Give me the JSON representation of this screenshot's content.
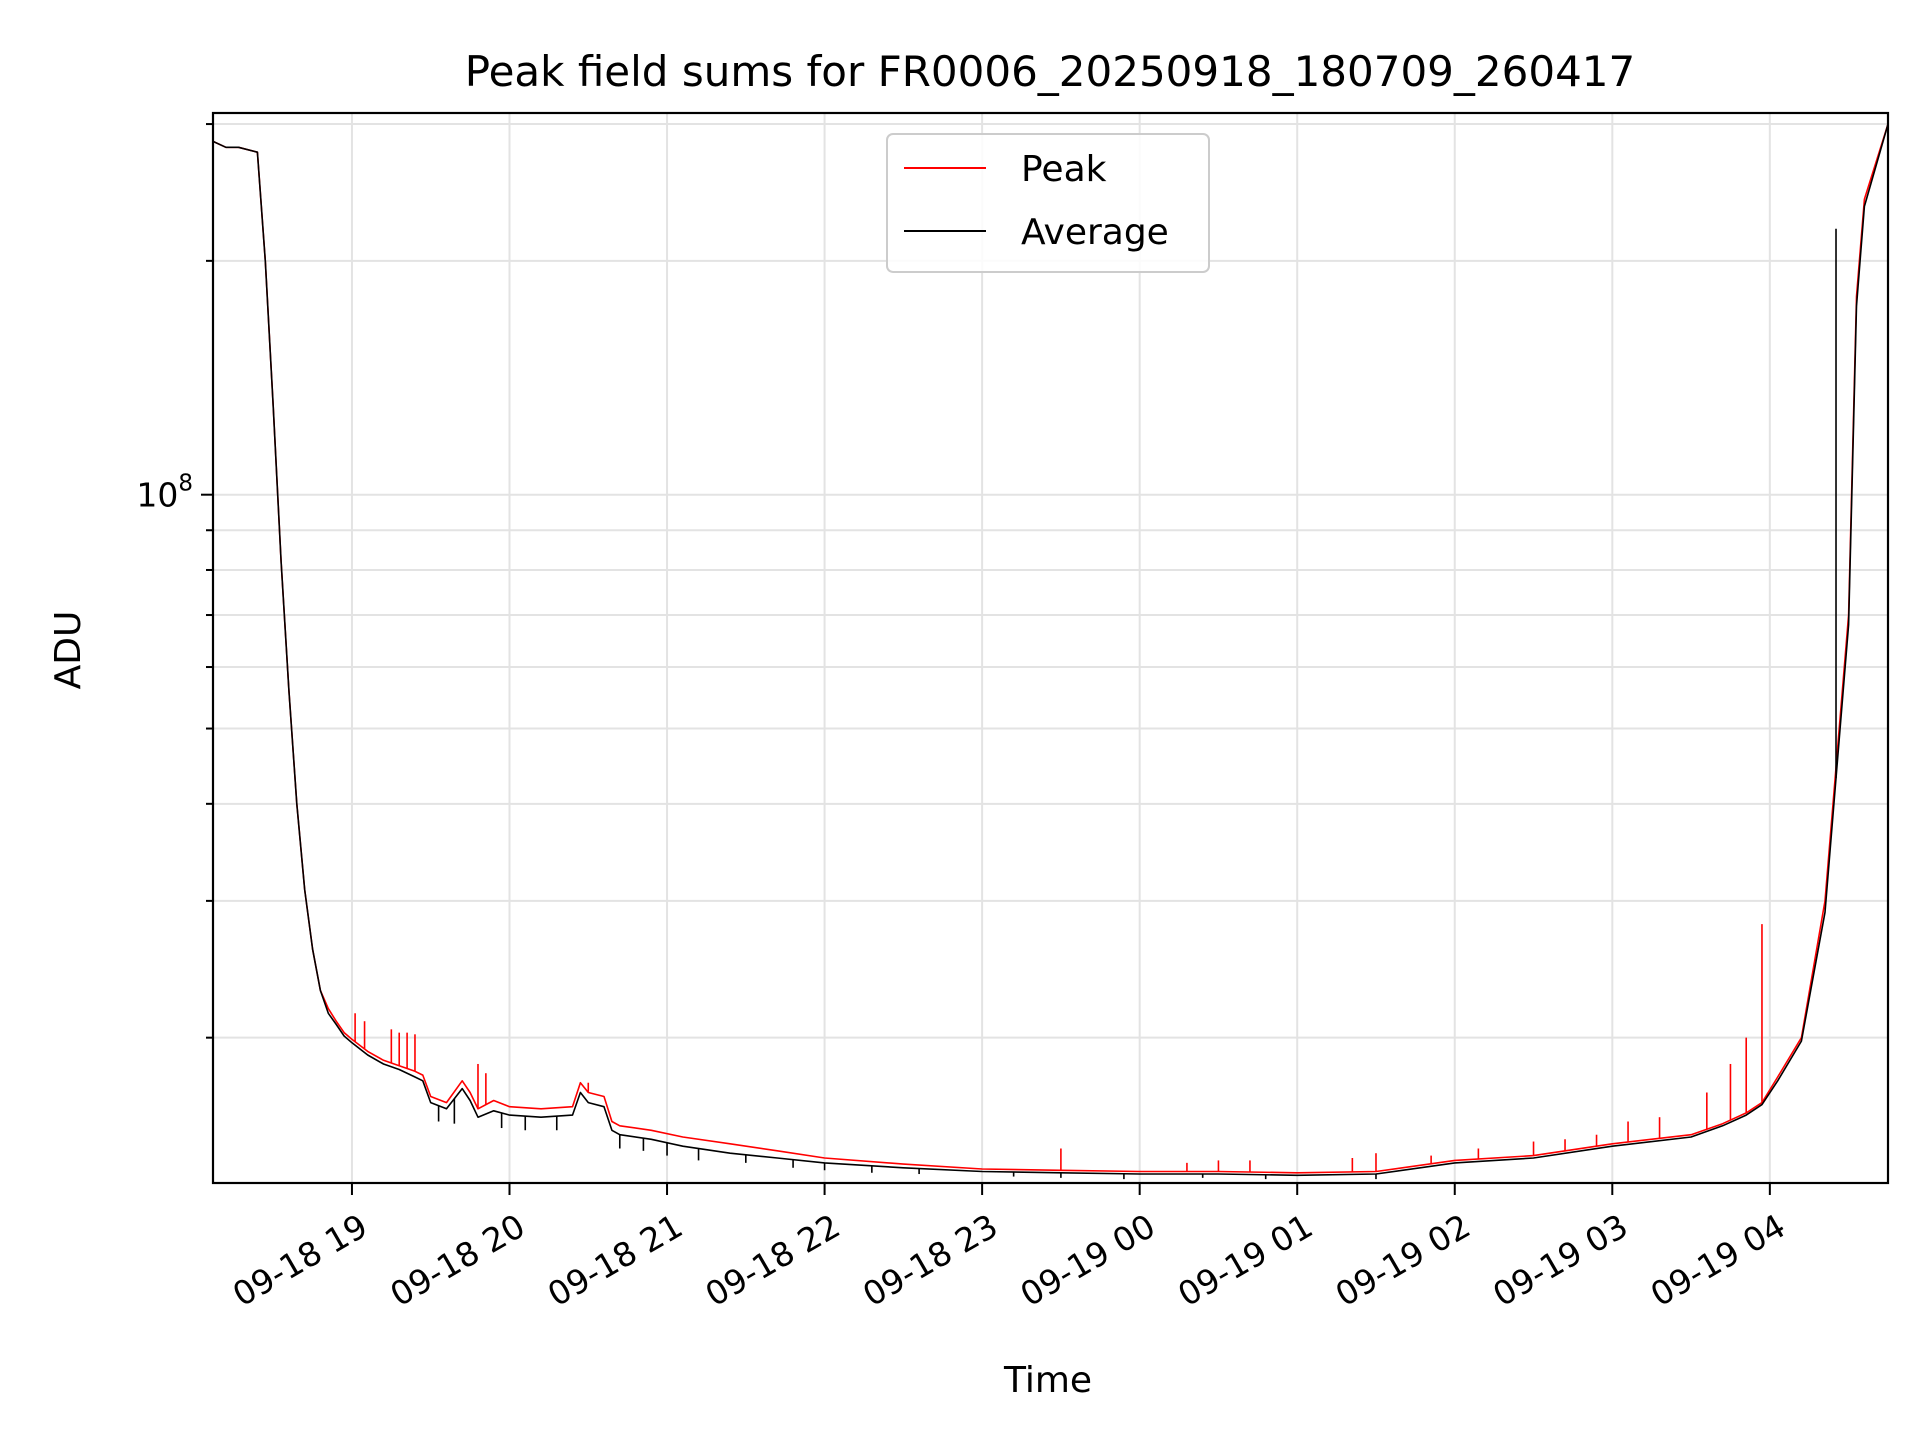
{
  "chart_data": {
    "type": "line",
    "title": "Peak field sums for FR0006_20250918_180709_260417",
    "xlabel": "Time",
    "ylabel": "ADU",
    "x_unit": "hours since 09-18 18:00",
    "xlim": [
      0.118,
      10.75
    ],
    "ylog": true,
    "ylim": [
      13000000,
      310000000
    ],
    "y_major_ticks": [
      {
        "value": 100000000,
        "base": "10",
        "exp": "8"
      }
    ],
    "y_minor_ticks": [
      20000000,
      30000000,
      40000000,
      50000000,
      60000000,
      70000000,
      80000000,
      90000000,
      200000000,
      300000000
    ],
    "x_ticks": [
      {
        "value": 1,
        "label": "09-18 19"
      },
      {
        "value": 2,
        "label": "09-18 20"
      },
      {
        "value": 3,
        "label": "09-18 21"
      },
      {
        "value": 4,
        "label": "09-18 22"
      },
      {
        "value": 5,
        "label": "09-18 23"
      },
      {
        "value": 6,
        "label": "09-19 00"
      },
      {
        "value": 7,
        "label": "09-19 01"
      },
      {
        "value": 8,
        "label": "09-19 02"
      },
      {
        "value": 9,
        "label": "09-19 03"
      },
      {
        "value": 10,
        "label": "09-19 04"
      }
    ],
    "grid": true,
    "legend": {
      "placement": "upper-center"
    },
    "series": [
      {
        "name": "Peak",
        "color": "#ff0000",
        "x": [
          0.118,
          0.2,
          0.28,
          0.4,
          0.45,
          0.5,
          0.55,
          0.6,
          0.65,
          0.7,
          0.75,
          0.8,
          0.85,
          0.9,
          0.95,
          1.0,
          1.1,
          1.2,
          1.3,
          1.4,
          1.45,
          1.5,
          1.6,
          1.7,
          1.75,
          1.8,
          1.9,
          2.0,
          2.2,
          2.4,
          2.45,
          2.5,
          2.6,
          2.65,
          2.7,
          2.9,
          3.1,
          3.4,
          3.7,
          4.0,
          4.5,
          5.0,
          5.5,
          6.0,
          6.5,
          7.0,
          7.5,
          8.0,
          8.5,
          9.0,
          9.5,
          9.7,
          9.85,
          9.95,
          10.05,
          10.2,
          10.35,
          10.5,
          10.55,
          10.6,
          10.75
        ],
        "y": [
          285000000,
          280000000,
          280000000,
          276000000,
          200000000,
          130000000,
          82000000,
          56000000,
          40000000,
          31000000,
          26000000,
          23000000,
          21800000,
          21000000,
          20300000,
          19900000,
          19200000,
          18700000,
          18400000,
          18100000,
          17900000,
          16800000,
          16500000,
          17600000,
          17000000,
          16200000,
          16600000,
          16300000,
          16200000,
          16300000,
          17500000,
          17000000,
          16800000,
          15600000,
          15400000,
          15200000,
          14900000,
          14600000,
          14300000,
          14000000,
          13750000,
          13550000,
          13500000,
          13450000,
          13450000,
          13400000,
          13450000,
          13900000,
          14100000,
          14600000,
          15000000,
          15500000,
          16000000,
          16500000,
          17800000,
          20000000,
          30000000,
          70000000,
          180000000,
          240000000,
          300000000
        ],
        "spikes": [
          {
            "x": 1.02,
            "y": 21500000
          },
          {
            "x": 1.08,
            "y": 21000000
          },
          {
            "x": 1.25,
            "y": 20500000
          },
          {
            "x": 1.3,
            "y": 20300000
          },
          {
            "x": 1.35,
            "y": 20300000
          },
          {
            "x": 1.4,
            "y": 20200000
          },
          {
            "x": 1.8,
            "y": 18500000
          },
          {
            "x": 1.85,
            "y": 18000000
          },
          {
            "x": 2.5,
            "y": 17500000
          },
          {
            "x": 5.5,
            "y": 14400000
          },
          {
            "x": 6.3,
            "y": 13800000
          },
          {
            "x": 6.5,
            "y": 13900000
          },
          {
            "x": 6.7,
            "y": 13900000
          },
          {
            "x": 7.35,
            "y": 14000000
          },
          {
            "x": 7.5,
            "y": 14200000
          },
          {
            "x": 7.85,
            "y": 14100000
          },
          {
            "x": 8.15,
            "y": 14400000
          },
          {
            "x": 8.5,
            "y": 14700000
          },
          {
            "x": 8.7,
            "y": 14800000
          },
          {
            "x": 8.9,
            "y": 15000000
          },
          {
            "x": 9.1,
            "y": 15600000
          },
          {
            "x": 9.3,
            "y": 15800000
          },
          {
            "x": 9.6,
            "y": 17000000
          },
          {
            "x": 9.75,
            "y": 18500000
          },
          {
            "x": 9.85,
            "y": 20000000
          },
          {
            "x": 9.95,
            "y": 28000000
          }
        ]
      },
      {
        "name": "Average",
        "color": "#000000",
        "x": [
          0.118,
          0.2,
          0.28,
          0.4,
          0.45,
          0.5,
          0.55,
          0.6,
          0.65,
          0.7,
          0.75,
          0.8,
          0.85,
          0.9,
          0.95,
          1.0,
          1.1,
          1.2,
          1.3,
          1.4,
          1.45,
          1.5,
          1.6,
          1.7,
          1.75,
          1.8,
          1.9,
          2.0,
          2.2,
          2.4,
          2.45,
          2.5,
          2.6,
          2.65,
          2.7,
          2.9,
          3.1,
          3.4,
          3.7,
          4.0,
          4.5,
          5.0,
          5.5,
          6.0,
          6.5,
          7.0,
          7.5,
          8.0,
          8.5,
          9.0,
          9.5,
          9.7,
          9.85,
          9.95,
          10.05,
          10.2,
          10.35,
          10.5,
          10.55,
          10.6,
          10.75
        ],
        "y": [
          285000000,
          280000000,
          280000000,
          276000000,
          200000000,
          130000000,
          82000000,
          56000000,
          40000000,
          31000000,
          26000000,
          23000000,
          21500000,
          20800000,
          20100000,
          19700000,
          19000000,
          18500000,
          18200000,
          17800000,
          17600000,
          16500000,
          16200000,
          17200000,
          16600000,
          15800000,
          16100000,
          15900000,
          15800000,
          15900000,
          17000000,
          16500000,
          16300000,
          15200000,
          15000000,
          14800000,
          14500000,
          14200000,
          14000000,
          13800000,
          13600000,
          13450000,
          13400000,
          13350000,
          13350000,
          13300000,
          13350000,
          13800000,
          14000000,
          14500000,
          14900000,
          15400000,
          15900000,
          16400000,
          17600000,
          19800000,
          29000000,
          68000000,
          175000000,
          235000000,
          300000000
        ],
        "spikes": [
          {
            "x": 1.55,
            "y": 15600000
          },
          {
            "x": 1.65,
            "y": 15500000
          },
          {
            "x": 1.95,
            "y": 15300000
          },
          {
            "x": 2.1,
            "y": 15200000
          },
          {
            "x": 2.3,
            "y": 15200000
          },
          {
            "x": 2.7,
            "y": 14400000
          },
          {
            "x": 2.85,
            "y": 14300000
          },
          {
            "x": 3.0,
            "y": 14100000
          },
          {
            "x": 3.2,
            "y": 13900000
          },
          {
            "x": 3.5,
            "y": 13800000
          },
          {
            "x": 3.8,
            "y": 13600000
          },
          {
            "x": 4.0,
            "y": 13500000
          },
          {
            "x": 4.3,
            "y": 13400000
          },
          {
            "x": 4.6,
            "y": 13350000
          },
          {
            "x": 5.2,
            "y": 13250000
          },
          {
            "x": 5.5,
            "y": 13200000
          },
          {
            "x": 5.9,
            "y": 13150000
          },
          {
            "x": 6.4,
            "y": 13200000
          },
          {
            "x": 6.8,
            "y": 13150000
          },
          {
            "x": 7.5,
            "y": 13150000
          },
          {
            "x": 10.42,
            "y": 220000000
          }
        ]
      }
    ]
  }
}
